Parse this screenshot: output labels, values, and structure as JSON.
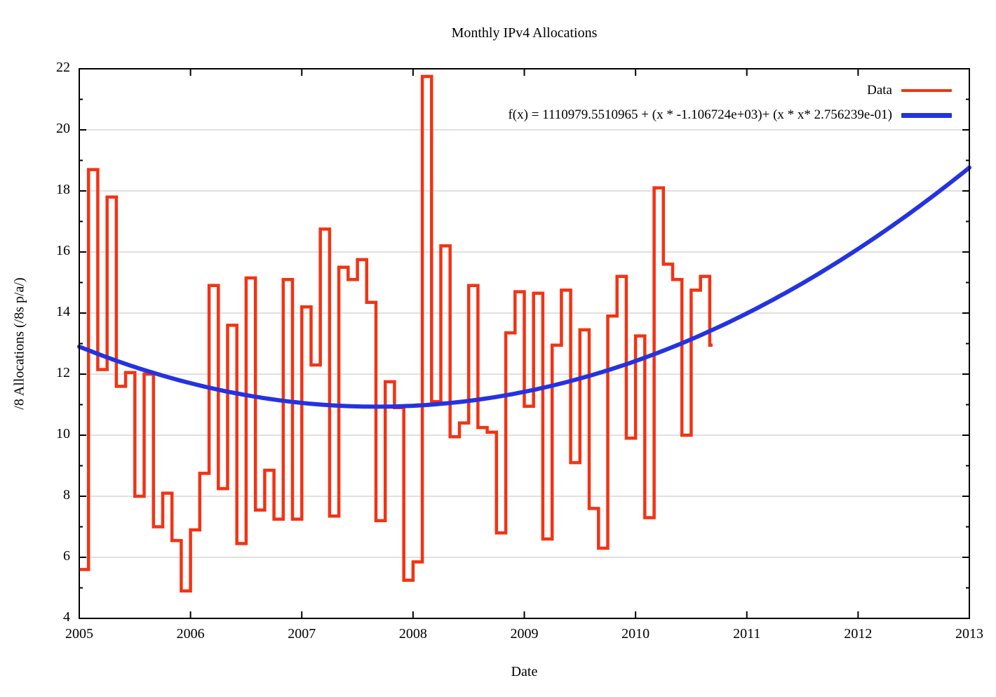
{
  "title": "Monthly IPv4 Allocations",
  "axes": {
    "xlabel": "Date",
    "ylabel": "/8 Allocations (/8s p/a/)"
  },
  "legend": {
    "data_label": "Data",
    "fit_label": "f(x) = 1110979.5510965 + (x * -1.106724e+03)+ (x * x* 2.756239e-01)"
  },
  "chart_data": {
    "type": "line",
    "title": "Monthly IPv4 Allocations",
    "xlabel": "Date",
    "ylabel": "/8 Allocations (/8s p/a/)",
    "xlim": [
      2005,
      2013
    ],
    "ylim": [
      4,
      22
    ],
    "x_ticks": [
      2005,
      2006,
      2007,
      2008,
      2009,
      2010,
      2011,
      2012,
      2013
    ],
    "y_ticks": [
      4,
      6,
      8,
      10,
      12,
      14,
      16,
      18,
      20,
      22
    ],
    "grid": "horizontal-only",
    "legend_position": "top-right-inside",
    "colors": {
      "data": "#f23314",
      "fit": "#2433e0",
      "grid": "#d6d6d6",
      "axis": "#000000"
    },
    "series": [
      {
        "name": "Data",
        "style": "steps",
        "start": "2005-01",
        "months_per_value": 1,
        "monthly_values": [
          5.6,
          18.7,
          12.15,
          17.8,
          11.6,
          12.05,
          8.0,
          12.0,
          7.0,
          8.1,
          6.55,
          4.9,
          6.9,
          8.75,
          14.9,
          8.25,
          13.6,
          6.45,
          15.15,
          7.55,
          8.85,
          7.25,
          15.1,
          7.25,
          14.2,
          12.3,
          16.75,
          7.35,
          15.5,
          15.1,
          15.75,
          14.35,
          7.2,
          11.75,
          10.9,
          5.25,
          5.85,
          21.75,
          11.1,
          16.2,
          9.95,
          10.4,
          14.9,
          10.25,
          10.1,
          6.8,
          13.35,
          14.7,
          10.95,
          14.65,
          6.6,
          12.95,
          14.75,
          9.1,
          13.45,
          7.6,
          6.3,
          13.9,
          15.2,
          9.9,
          13.25,
          7.3,
          18.1,
          15.6,
          15.1,
          10.0,
          14.75,
          15.2
        ],
        "end_value": 12.95
      },
      {
        "name": "f(x) = 1110979.5510965 + (x * -1.106724e+03)+ (x * x* 2.756239e-01)",
        "style": "quadratic-fit",
        "coefficients": {
          "a": 1110979.5510965,
          "b": -1106.724,
          "c": 0.2756239
        }
      }
    ]
  }
}
